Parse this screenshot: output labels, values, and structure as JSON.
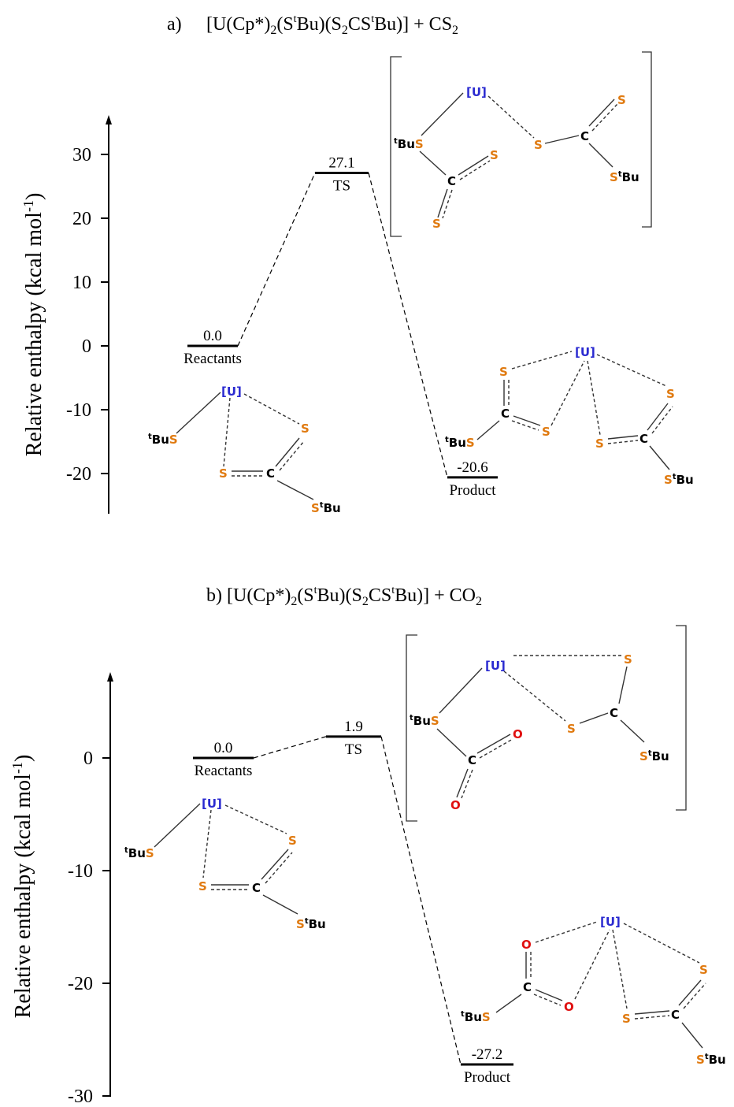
{
  "panel_a": {
    "title_label": "a)",
    "title": "[U(Cp*)2(StBu)(S2CStBu)] + CS2",
    "ylabel": "Relative enthalpy (kcal mol-1)",
    "ticks": [
      "30",
      "20",
      "10",
      "0",
      "-10",
      "-20"
    ],
    "levels": [
      {
        "value": "0.0",
        "label": "Reactants"
      },
      {
        "value": "27.1",
        "label": "TS"
      },
      {
        "value": "-20.6",
        "label": "Product"
      }
    ]
  },
  "panel_b": {
    "title": "b) [U(Cp*)2(StBu)(S2CStBu)] + CO2",
    "ylabel": "Relative enthalpy (kcal mol-1)",
    "ticks": [
      "0",
      "-10",
      "-20",
      "-30"
    ],
    "levels": [
      {
        "value": "0.0",
        "label": "Reactants"
      },
      {
        "value": "1.9",
        "label": "TS"
      },
      {
        "value": "-27.2",
        "label": "Product"
      }
    ]
  },
  "atoms": {
    "U": "[U]",
    "S": "S",
    "C": "C",
    "O": "O",
    "tBu_prefix": "t",
    "Bu": "Bu"
  },
  "colors": {
    "sulfur": "#e07a10",
    "uranium": "#2a2ad0",
    "oxygen": "#e01010",
    "carbon": "#000000"
  },
  "chart_data": [
    {
      "type": "line",
      "title": "[U(Cp*)2(StBu)(S2CStBu)] + CS2",
      "ylabel": "Relative enthalpy (kcal mol-1)",
      "categories": [
        "Reactants",
        "TS",
        "Product"
      ],
      "values": [
        0.0,
        27.1,
        -20.6
      ],
      "ylim": [
        -25,
        35
      ]
    },
    {
      "type": "line",
      "title": "[U(Cp*)2(StBu)(S2CStBu)] + CO2",
      "ylabel": "Relative enthalpy (kcal mol-1)",
      "categories": [
        "Reactants",
        "TS",
        "Product"
      ],
      "values": [
        0.0,
        1.9,
        -27.2
      ],
      "ylim": [
        -30,
        6
      ]
    }
  ]
}
